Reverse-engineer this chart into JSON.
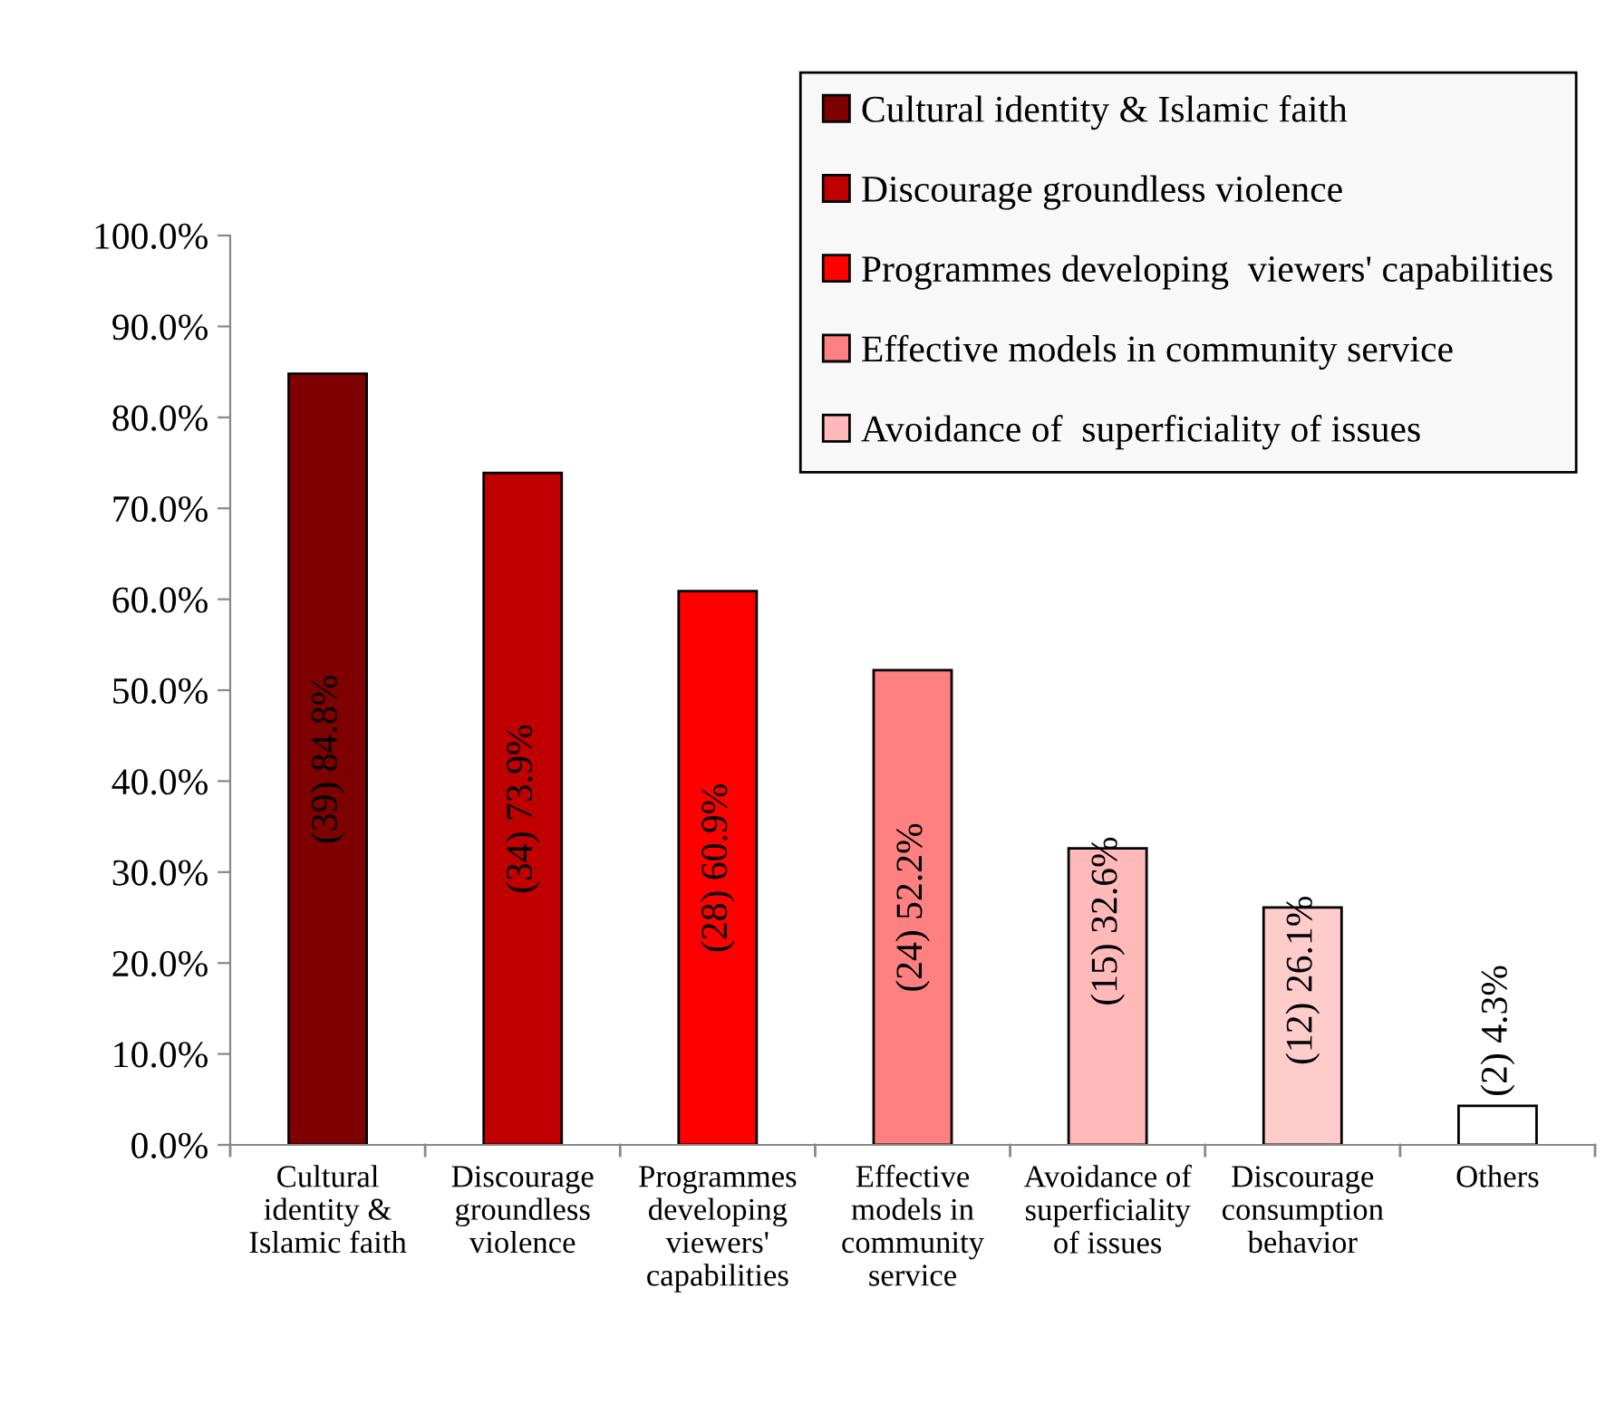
{
  "chart_data": {
    "type": "bar",
    "categories": [
      "Cultural\nidentity &\nIslamic faith",
      "Discourage\ngroundless\nviolence",
      "Programmes\ndeveloping\nviewers'\ncapabilities",
      "Effective\nmodels in\ncommunity\nservice",
      "Avoidance of\nsuperficiality\nof issues",
      "Discourage\nconsumption\nbehavior",
      "Others"
    ],
    "series": [
      {
        "name": "Cultural identity & Islamic faith",
        "color": "#7f0000",
        "values": [
          84.8,
          null,
          null,
          null,
          null,
          null,
          null
        ],
        "value_labels": [
          "(39) 84.8%",
          null,
          null,
          null,
          null,
          null,
          null
        ]
      },
      {
        "name": "Discourage groundless violence",
        "color": "#c00000",
        "values": [
          null,
          73.9,
          null,
          null,
          null,
          null,
          null
        ],
        "value_labels": [
          null,
          "(34) 73.9%",
          null,
          null,
          null,
          null,
          null
        ]
      },
      {
        "name": "Programmes developing  viewers' capabilities",
        "color": "#ff0000",
        "values": [
          null,
          null,
          60.9,
          null,
          null,
          null,
          null
        ],
        "value_labels": [
          null,
          null,
          "(28) 60.9%",
          null,
          null,
          null,
          null
        ]
      },
      {
        "name": "Effective models in community service",
        "color": "#ff8080",
        "values": [
          null,
          null,
          null,
          52.2,
          null,
          null,
          null
        ],
        "value_labels": [
          null,
          null,
          null,
          "(24) 52.2%",
          null,
          null,
          null
        ]
      },
      {
        "name": "Avoidance of  superficiality of issues",
        "color": "#ffb9b9",
        "values": [
          null,
          null,
          null,
          null,
          32.6,
          null,
          null
        ],
        "value_labels": [
          null,
          null,
          null,
          null,
          "(15) 32.6%",
          null,
          null
        ]
      },
      {
        "color": "#ffcccc",
        "values": [
          null,
          null,
          null,
          null,
          null,
          26.1,
          null
        ],
        "value_labels": [
          null,
          null,
          null,
          null,
          null,
          "(12) 26.1%",
          null
        ]
      },
      {
        "color": "#ffffff",
        "values": [
          null,
          null,
          null,
          null,
          null,
          null,
          4.3
        ],
        "value_labels": [
          null,
          null,
          null,
          null,
          null,
          null,
          "(2) 4.3%"
        ]
      }
    ],
    "ylim": [
      0,
      100
    ],
    "yticks": [
      {
        "value": 0,
        "label": "0.0%"
      },
      {
        "value": 10,
        "label": "10.0%"
      },
      {
        "value": 20,
        "label": "20.0%"
      },
      {
        "value": 30,
        "label": "30.0%"
      },
      {
        "value": 40,
        "label": "40.0%"
      },
      {
        "value": 50,
        "label": "50.0%"
      },
      {
        "value": 60,
        "label": "60.0%"
      },
      {
        "value": 70,
        "label": "70.0%"
      },
      {
        "value": 80,
        "label": "80.0%"
      },
      {
        "value": 90,
        "label": "90.0%"
      },
      {
        "value": 100,
        "label": "100.0%"
      }
    ],
    "grid": false,
    "legend": "top right"
  }
}
